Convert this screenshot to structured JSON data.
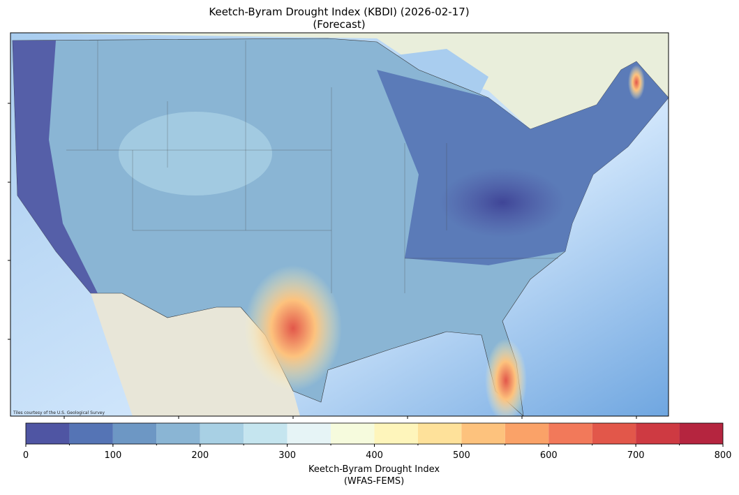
{
  "title": [
    "Keetch-Byram Drought Index (KBDI) (2026-02-17)",
    "(Forecast)"
  ],
  "map": {
    "attribution": "Tiles courtesy of the U.S. Geological Survey"
  },
  "colorbar": {
    "bounds": [
      0,
      50,
      100,
      150,
      200,
      250,
      300,
      350,
      400,
      450,
      500,
      550,
      600,
      650,
      700,
      750,
      800
    ],
    "colors": [
      "#4f55a3",
      "#5574b5",
      "#6d97c4",
      "#8ab5d4",
      "#a8d0e4",
      "#c5e5ef",
      "#e6f4f6",
      "#f6fbdd",
      "#fef5bb",
      "#fee19a",
      "#fdc27d",
      "#faa268",
      "#f2795a",
      "#e2574a",
      "#ce3a42",
      "#b5253f"
    ],
    "ticks": [
      0,
      100,
      200,
      300,
      400,
      500,
      600,
      700,
      800
    ],
    "label": [
      "Keetch-Byram Drought Index",
      "(WFAS-FEMS)"
    ]
  }
}
